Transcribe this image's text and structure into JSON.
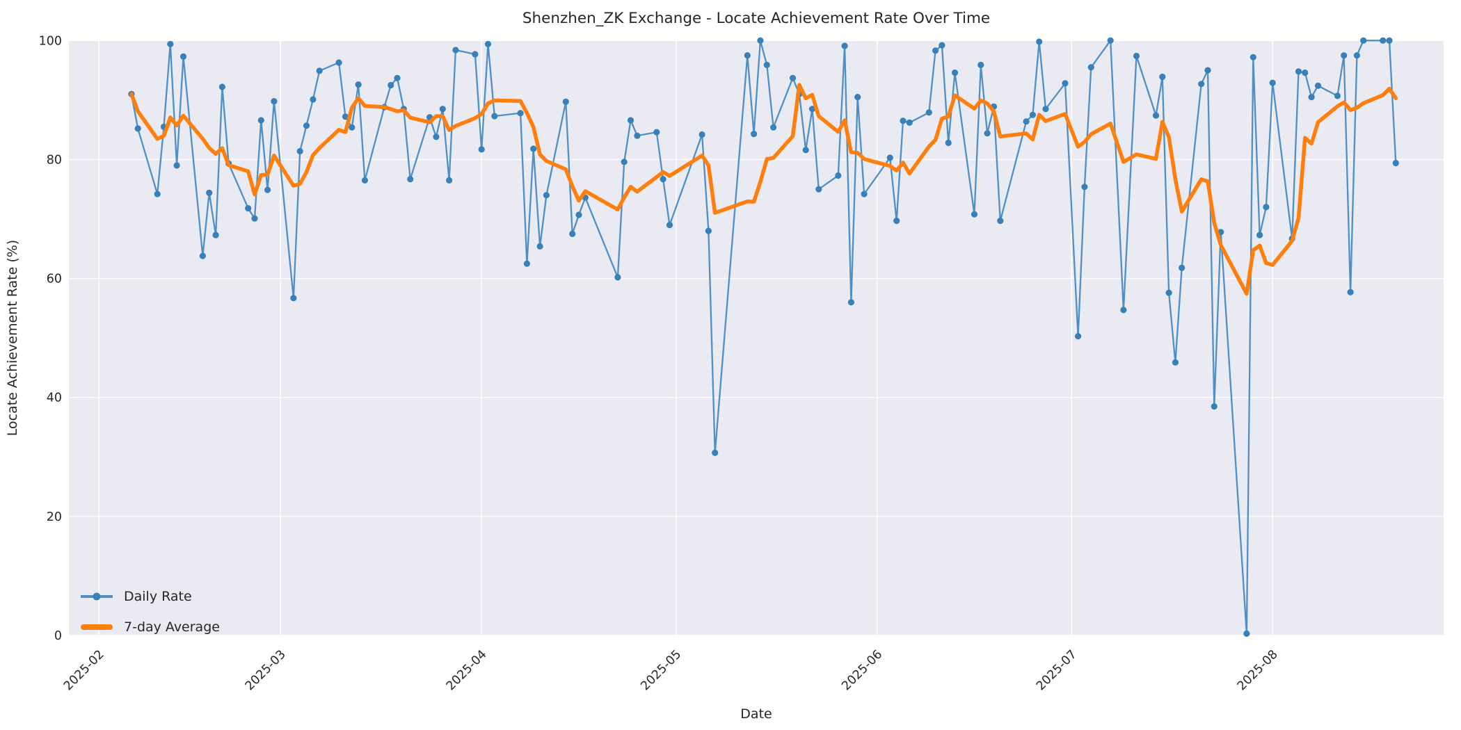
{
  "title": "Shenzhen_ZK Exchange - Locate Achievement Rate Over Time",
  "chart_data": {
    "type": "line",
    "title": "Shenzhen_ZK Exchange - Locate Achievement Rate Over Time",
    "xlabel": "Date",
    "ylabel": "Locate Achievement Rate (%)",
    "ylim": [
      0,
      100
    ],
    "yticks": [
      0,
      20,
      40,
      60,
      80,
      100
    ],
    "xticks": [
      {
        "label": "2025-02",
        "date": "2025-02-01"
      },
      {
        "label": "2025-03",
        "date": "2025-03-01"
      },
      {
        "label": "2025-04",
        "date": "2025-04-01"
      },
      {
        "label": "2025-05",
        "date": "2025-05-01"
      },
      {
        "label": "2025-06",
        "date": "2025-06-01"
      },
      {
        "label": "2025-07",
        "date": "2025-07-01"
      },
      {
        "label": "2025-08",
        "date": "2025-08-01"
      }
    ],
    "grid": true,
    "legend_position": "lower left",
    "colors": {
      "daily_line": "#4f8fc4",
      "daily_marker": "#3880b8",
      "average": "#ff7f0e",
      "axes_background": "#eaeaf2",
      "gridline": "#ffffff",
      "text": "#262626"
    },
    "series": [
      {
        "name": "Daily Rate",
        "style": "line+markers",
        "dates": [
          "2025-02-06",
          "2025-02-07",
          "2025-02-10",
          "2025-02-11",
          "2025-02-12",
          "2025-02-13",
          "2025-02-14",
          "2025-02-17",
          "2025-02-18",
          "2025-02-19",
          "2025-02-20",
          "2025-02-21",
          "2025-02-24",
          "2025-02-25",
          "2025-02-26",
          "2025-02-27",
          "2025-02-28",
          "2025-03-03",
          "2025-03-04",
          "2025-03-05",
          "2025-03-06",
          "2025-03-07",
          "2025-03-10",
          "2025-03-11",
          "2025-03-12",
          "2025-03-13",
          "2025-03-14",
          "2025-03-17",
          "2025-03-18",
          "2025-03-19",
          "2025-03-20",
          "2025-03-21",
          "2025-03-24",
          "2025-03-25",
          "2025-03-26",
          "2025-03-27",
          "2025-03-28",
          "2025-03-31",
          "2025-04-01",
          "2025-04-02",
          "2025-04-03",
          "2025-04-07",
          "2025-04-08",
          "2025-04-09",
          "2025-04-10",
          "2025-04-11",
          "2025-04-14",
          "2025-04-15",
          "2025-04-16",
          "2025-04-17",
          "2025-04-22",
          "2025-04-23",
          "2025-04-24",
          "2025-04-25",
          "2025-04-28",
          "2025-04-29",
          "2025-04-30",
          "2025-05-05",
          "2025-05-06",
          "2025-05-07",
          "2025-05-12",
          "2025-05-13",
          "2025-05-14",
          "2025-05-15",
          "2025-05-16",
          "2025-05-19",
          "2025-05-20",
          "2025-05-21",
          "2025-05-22",
          "2025-05-23",
          "2025-05-26",
          "2025-05-27",
          "2025-05-28",
          "2025-05-29",
          "2025-05-30",
          "2025-06-03",
          "2025-06-04",
          "2025-06-05",
          "2025-06-06",
          "2025-06-09",
          "2025-06-10",
          "2025-06-11",
          "2025-06-12",
          "2025-06-13",
          "2025-06-16",
          "2025-06-17",
          "2025-06-18",
          "2025-06-19",
          "2025-06-20",
          "2025-06-24",
          "2025-06-25",
          "2025-06-26",
          "2025-06-27",
          "2025-06-30",
          "2025-07-02",
          "2025-07-03",
          "2025-07-04",
          "2025-07-07",
          "2025-07-09",
          "2025-07-11",
          "2025-07-14",
          "2025-07-15",
          "2025-07-16",
          "2025-07-17",
          "2025-07-18",
          "2025-07-21",
          "2025-07-22",
          "2025-07-23",
          "2025-07-24",
          "2025-07-28",
          "2025-07-29",
          "2025-07-30",
          "2025-07-31",
          "2025-08-01",
          "2025-08-04",
          "2025-08-05",
          "2025-08-06",
          "2025-08-07",
          "2025-08-08",
          "2025-08-11",
          "2025-08-12",
          "2025-08-13",
          "2025-08-14",
          "2025-08-15",
          "2025-08-18",
          "2025-08-19",
          "2025-08-20"
        ],
        "values": [
          91.0,
          85.2,
          74.2,
          85.5,
          99.4,
          79.0,
          97.3,
          63.8,
          74.4,
          67.3,
          92.2,
          79.3,
          71.8,
          70.1,
          86.6,
          74.9,
          89.8,
          56.7,
          81.4,
          85.7,
          90.1,
          94.9,
          96.3,
          87.2,
          85.4,
          92.6,
          76.5,
          88.8,
          92.5,
          93.7,
          88.5,
          76.7,
          87.1,
          83.8,
          88.5,
          76.5,
          98.4,
          97.7,
          81.7,
          99.4,
          87.3,
          87.8,
          62.5,
          81.8,
          65.4,
          74.0,
          89.7,
          67.5,
          70.7,
          73.6,
          60.2,
          79.6,
          86.6,
          84.0,
          84.6,
          76.7,
          69.0,
          84.2,
          68.0,
          30.7,
          97.5,
          84.3,
          100.0,
          95.9,
          85.4,
          93.7,
          91.0,
          81.6,
          88.5,
          75.0,
          77.3,
          99.1,
          56.0,
          90.5,
          74.2,
          80.3,
          69.7,
          86.5,
          86.2,
          87.9,
          98.3,
          99.2,
          82.8,
          94.6,
          70.8,
          95.9,
          84.4,
          88.9,
          69.7,
          86.4,
          87.5,
          99.8,
          88.5,
          92.8,
          50.3,
          75.4,
          95.5,
          100.0,
          54.7,
          97.4,
          87.4,
          93.9,
          57.6,
          45.9,
          61.8,
          92.7,
          95.0,
          38.5,
          67.8,
          0.3,
          97.2,
          67.3,
          72.0,
          92.9,
          66.7,
          94.8,
          94.6,
          90.5,
          92.4,
          90.7,
          97.5,
          57.7,
          97.5,
          100.0,
          100.0,
          100.0,
          79.4
        ]
      },
      {
        "name": "7-day Average",
        "style": "thick-line",
        "derived": "rolling_mean_window_7_min_periods_1_of_Daily_Rate"
      }
    ]
  },
  "legend": {
    "daily_label": "Daily Rate",
    "average_label": "7-day Average"
  }
}
